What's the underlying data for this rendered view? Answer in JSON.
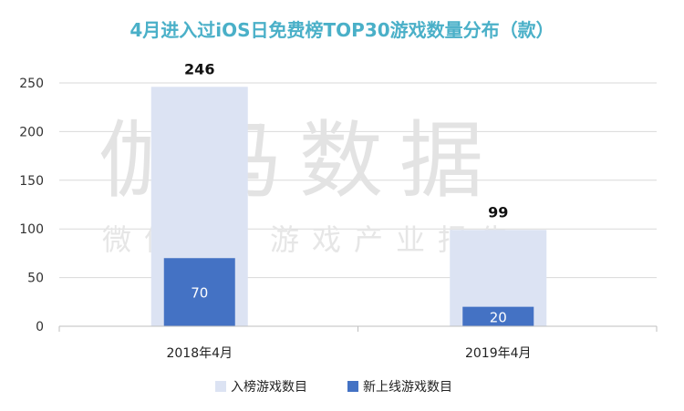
{
  "colors": {
    "title": "#4ab0c8",
    "series_total": "#dce3f3",
    "series_new": "#4472c4",
    "grid": "#d9d9d9",
    "axis": "#bfbfbf"
  },
  "watermark": {
    "main": "伽马数据",
    "sub": "微信号：游戏产业报告"
  },
  "chart_data": {
    "type": "bar",
    "title": "4月进入过iOS日免费榜TOP30游戏数量分布（款）",
    "categories": [
      "2018年4月",
      "2019年4月"
    ],
    "series": [
      {
        "name": "入榜游戏数目",
        "values": [
          246,
          99
        ]
      },
      {
        "name": "新上线游戏数目",
        "values": [
          70,
          20
        ]
      }
    ],
    "ylim": [
      0,
      250
    ],
    "yticks": [
      0,
      50,
      100,
      150,
      200,
      250
    ],
    "grid": true,
    "legend": "bottom"
  }
}
